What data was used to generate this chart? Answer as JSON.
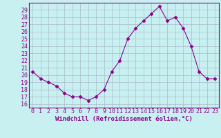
{
  "x": [
    0,
    1,
    2,
    3,
    4,
    5,
    6,
    7,
    8,
    9,
    10,
    11,
    12,
    13,
    14,
    15,
    16,
    17,
    18,
    19,
    20,
    21,
    22,
    23
  ],
  "y": [
    20.5,
    19.5,
    19.0,
    18.5,
    17.5,
    17.0,
    17.0,
    16.5,
    17.0,
    18.0,
    20.5,
    22.0,
    25.0,
    26.5,
    27.5,
    28.5,
    29.5,
    27.5,
    28.0,
    26.5,
    24.0,
    20.5,
    19.5,
    19.5
  ],
  "line_color": "#8b008b",
  "marker": "D",
  "marker_size": 2.5,
  "bg_color": "#c8f0f0",
  "grid_color": "#aabbcc",
  "xlabel": "Windchill (Refroidissement éolien,°C)",
  "xlabel_color": "#8b008b",
  "ylabel_ticks": [
    16,
    17,
    18,
    19,
    20,
    21,
    22,
    23,
    24,
    25,
    26,
    27,
    28,
    29
  ],
  "ylim": [
    15.5,
    30.0
  ],
  "xlim": [
    -0.5,
    23.5
  ],
  "tick_color": "#8b008b",
  "label_fontsize": 6.5,
  "tick_fontsize": 6.0
}
